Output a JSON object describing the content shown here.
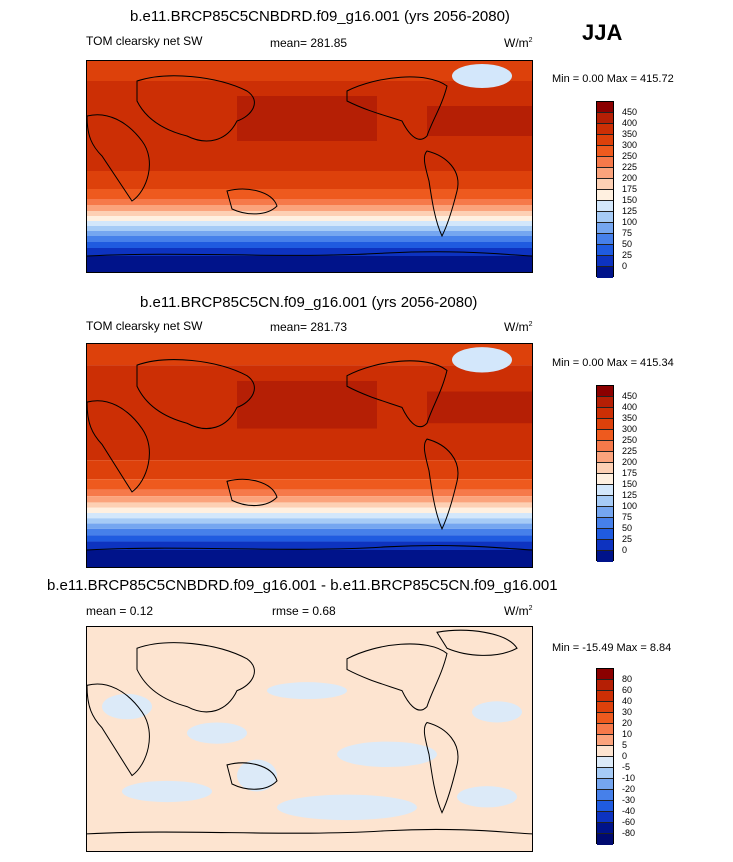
{
  "season": "JJA",
  "panels": [
    {
      "title": "b.e11.BRCP85C5CNBDRD.f09_g16.001 (yrs 2056-2080)",
      "left_label": "TOM clearsky net SW",
      "center_label": "mean= 281.85",
      "units": "W/m",
      "units_sup": "2",
      "minmax": "Min =   0.00 Max = 415.72",
      "colorbar": {
        "labels": [
          "450",
          "400",
          "350",
          "300",
          "250",
          "225",
          "200",
          "175",
          "150",
          "125",
          "100",
          "75",
          "50",
          "25",
          "0"
        ],
        "colors": [
          "#8b0000",
          "#b51f05",
          "#cc2f05",
          "#dd410b",
          "#ee5a1e",
          "#f6794a",
          "#fba37c",
          "#fdd0b4",
          "#fff0e0",
          "#d3e7fb",
          "#a6cbf6",
          "#75a6f0",
          "#4680ea",
          "#1f5be0",
          "#0d33c0",
          "#00138a"
        ]
      }
    },
    {
      "title": "b.e11.BRCP85C5CN.f09_g16.001 (yrs 2056-2080)",
      "left_label": "TOM clearsky net SW",
      "center_label": "mean= 281.73",
      "units": "W/m",
      "units_sup": "2",
      "minmax": "Min =   0.00 Max = 415.34",
      "colorbar": {
        "labels": [
          "450",
          "400",
          "350",
          "300",
          "250",
          "225",
          "200",
          "175",
          "150",
          "125",
          "100",
          "75",
          "50",
          "25",
          "0"
        ],
        "colors": [
          "#8b0000",
          "#b51f05",
          "#cc2f05",
          "#dd410b",
          "#ee5a1e",
          "#f6794a",
          "#fba37c",
          "#fdd0b4",
          "#fff0e0",
          "#d3e7fb",
          "#a6cbf6",
          "#75a6f0",
          "#4680ea",
          "#1f5be0",
          "#0d33c0",
          "#00138a"
        ]
      }
    },
    {
      "title": "b.e11.BRCP85C5CNBDRD.f09_g16.001 - b.e11.BRCP85C5CN.f09_g16.001",
      "left_label": "mean =   0.12",
      "center_label": "rmse =   0.68",
      "units": "W/m",
      "units_sup": "2",
      "minmax": "Min = -15.49 Max =   8.84",
      "colorbar": {
        "labels": [
          "80",
          "60",
          "40",
          "30",
          "20",
          "10",
          "5",
          "0",
          "-5",
          "-10",
          "-20",
          "-30",
          "-40",
          "-60",
          "-80"
        ],
        "colors": [
          "#8b0000",
          "#b51f05",
          "#cc2f05",
          "#dd410b",
          "#ee5a1e",
          "#f6794a",
          "#fba37c",
          "#fde4d0",
          "#dceaf8",
          "#a6cbf6",
          "#75a6f0",
          "#4680ea",
          "#1f5be0",
          "#0d33c0",
          "#00138a",
          "#000a70"
        ]
      }
    }
  ]
}
